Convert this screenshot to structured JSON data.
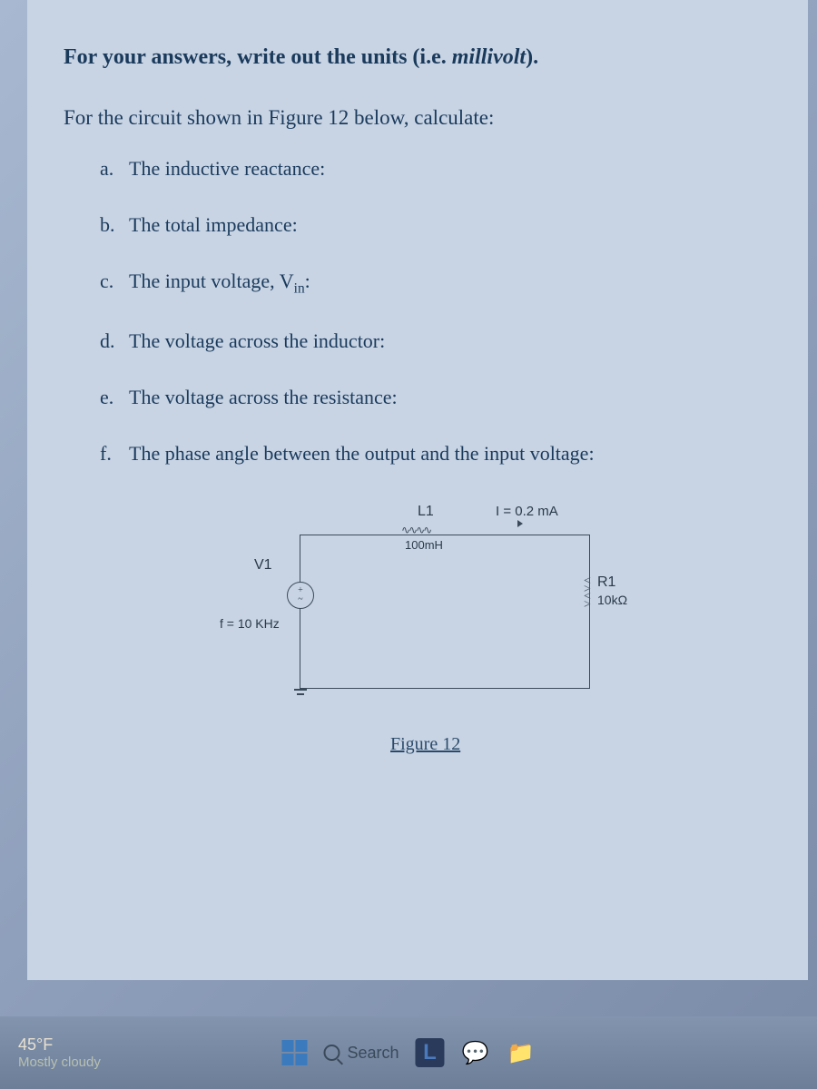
{
  "instruction_prefix": "For your answers, write out the units (i.e. ",
  "instruction_em": "millivolt",
  "instruction_suffix": ").",
  "prompt": "For the circuit shown in Figure 12 below, calculate:",
  "questions": {
    "a": {
      "letter": "a.",
      "text": "The inductive reactance:"
    },
    "b": {
      "letter": "b.",
      "text": "The total impedance:"
    },
    "c": {
      "letter": "c.",
      "text_pre": "The input voltage, V",
      "sub": "in",
      "text_post": ":"
    },
    "d": {
      "letter": "d.",
      "text": "The voltage across the inductor:"
    },
    "e": {
      "letter": "e.",
      "text": "The voltage across the resistance:"
    },
    "f": {
      "letter": "f.",
      "text": "The phase angle between the output and the input voltage:"
    }
  },
  "circuit": {
    "source_name": "V1",
    "frequency": "f = 10 KHz",
    "inductor_name": "L1",
    "inductor_value": "100mH",
    "current": "I = 0.2 mA",
    "resistor_name": "R1",
    "resistor_value": "10kΩ",
    "caption": "Figure 12"
  },
  "taskbar": {
    "temp": "45°F",
    "weather": "Mostly cloudy",
    "search": "Search"
  },
  "colors": {
    "background": "#c8d4e4",
    "text": "#1a3a5c",
    "circuit_line": "#3a4a5a",
    "taskbar_bg": "#7a8ba8"
  }
}
